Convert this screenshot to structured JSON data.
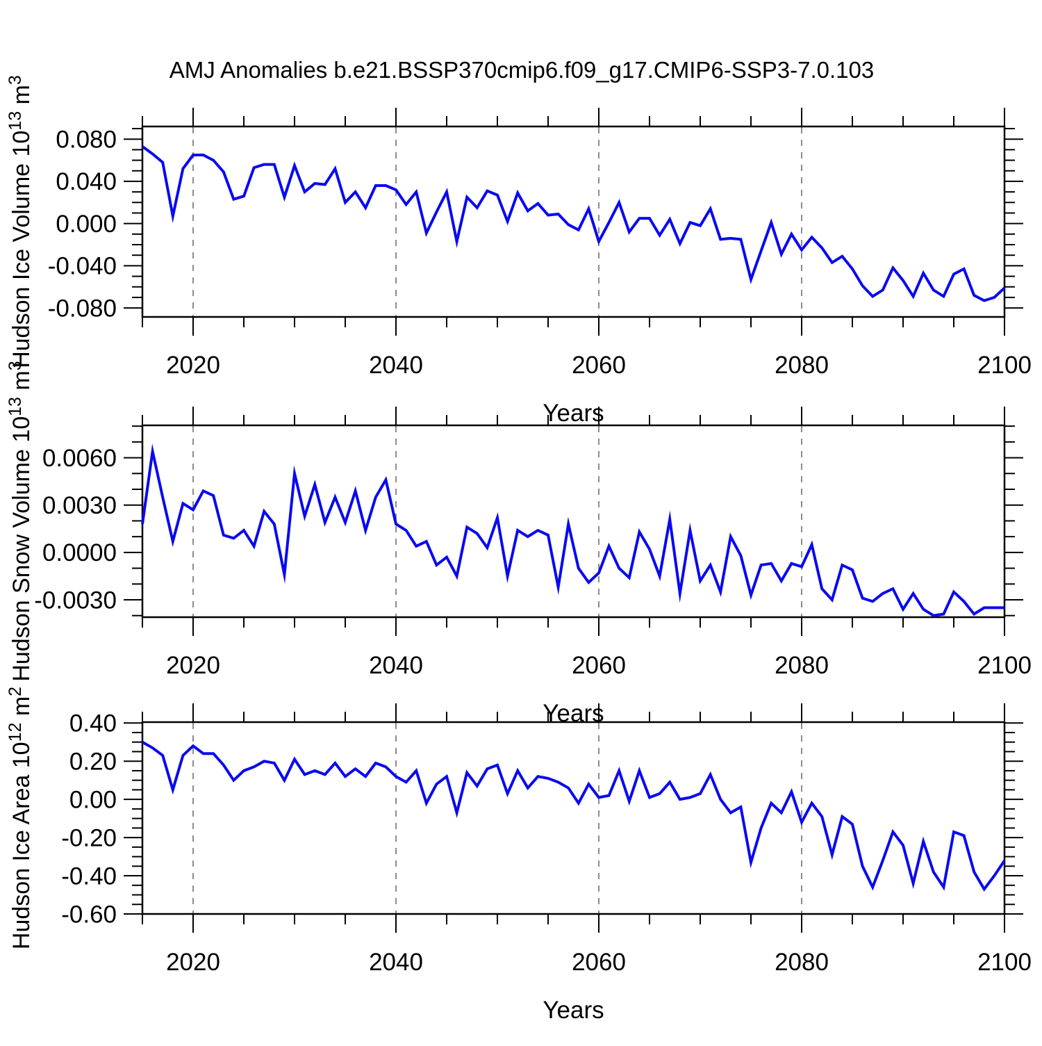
{
  "title": "AMJ Anomalies b.e21.BSSP370cmip6.f09_g17.CMIP6-SSP3-7.0.103",
  "colors": {
    "line": "#0a0af0",
    "grid": "#808080",
    "axis": "#000000",
    "background": "#ffffff"
  },
  "x_axis": {
    "label": "Years",
    "min": 2015,
    "max": 2100,
    "major_ticks": [
      2020,
      2040,
      2060,
      2080,
      2100
    ],
    "minor_step": 5,
    "gridline_years": [
      2020,
      2040,
      2060,
      2080
    ]
  },
  "chart_data": [
    {
      "id": "ice-volume",
      "type": "line",
      "title": "",
      "xlabel": "Years",
      "ylabel": "Hudson Ice Volume 10^13 m^3",
      "ylabel_parts": [
        {
          "t": "Hudson Ice Volume 10"
        },
        {
          "t": "13",
          "sup": true
        },
        {
          "t": " m"
        },
        {
          "t": "3",
          "sup": true
        }
      ],
      "x_start": 2015,
      "x_step": 1,
      "ylim": [
        -0.0885,
        0.092
      ],
      "yticks": {
        "values": [
          0.08,
          0.04,
          0.0,
          -0.04,
          -0.08
        ],
        "labels": [
          "0.080",
          "0.040",
          "0.000",
          "-0.040",
          "-0.080"
        ],
        "minor_step": 0.01
      },
      "values": [
        0.073,
        0.066,
        0.058,
        0.007,
        0.052,
        0.065,
        0.065,
        0.06,
        0.049,
        0.023,
        0.026,
        0.053,
        0.056,
        0.056,
        0.025,
        0.055,
        0.03,
        0.038,
        0.037,
        0.052,
        0.02,
        0.03,
        0.015,
        0.036,
        0.036,
        0.032,
        0.018,
        0.03,
        -0.009,
        0.011,
        0.03,
        -0.017,
        0.025,
        0.015,
        0.031,
        0.027,
        0.002,
        0.029,
        0.012,
        0.019,
        0.008,
        0.009,
        -0.001,
        -0.006,
        0.014,
        -0.017,
        0.001,
        0.02,
        -0.008,
        0.005,
        0.005,
        -0.011,
        0.004,
        -0.019,
        0.001,
        -0.002,
        0.014,
        -0.015,
        -0.014,
        -0.015,
        -0.053,
        -0.026,
        0.001,
        -0.029,
        -0.01,
        -0.025,
        -0.013,
        -0.023,
        -0.037,
        -0.031,
        -0.043,
        -0.059,
        -0.069,
        -0.063,
        -0.042,
        -0.054,
        -0.069,
        -0.047,
        -0.063,
        -0.069,
        -0.048,
        -0.043,
        -0.068,
        -0.073,
        -0.07,
        -0.061
      ]
    },
    {
      "id": "snow-volume",
      "type": "line",
      "title": "",
      "xlabel": "Years",
      "ylabel": "Hudson Snow Volume 10^13 m^3",
      "ylabel_parts": [
        {
          "t": "Hudson Snow Volume 10"
        },
        {
          "t": "13",
          "sup": true
        },
        {
          "t": " m"
        },
        {
          "t": "3",
          "sup": true
        }
      ],
      "x_start": 2015,
      "x_step": 1,
      "ylim": [
        -0.0041,
        0.00805
      ],
      "yticks": {
        "values": [
          0.006,
          0.003,
          0.0,
          -0.003
        ],
        "labels": [
          "0.0060",
          "0.0030",
          "0.0000",
          "-0.0030"
        ],
        "minor_step": 0.001
      },
      "values": [
        0.0018,
        0.0064,
        0.0035,
        0.0007,
        0.0031,
        0.0027,
        0.0039,
        0.0036,
        0.0011,
        0.0009,
        0.0014,
        0.0004,
        0.0026,
        0.0018,
        -0.0014,
        0.005,
        0.0023,
        0.0043,
        0.0019,
        0.0035,
        0.0019,
        0.0039,
        0.0014,
        0.0035,
        0.0046,
        0.0018,
        0.0014,
        0.0004,
        0.0007,
        -0.0008,
        -0.0003,
        -0.0015,
        0.0016,
        0.0012,
        0.0003,
        0.0022,
        -0.0015,
        0.0014,
        0.001,
        0.0014,
        0.0011,
        -0.0022,
        0.0018,
        -0.001,
        -0.0019,
        -0.0013,
        0.0004,
        -0.001,
        -0.0016,
        0.0013,
        0.0002,
        -0.0015,
        0.0021,
        -0.0026,
        0.0014,
        -0.0018,
        -0.0008,
        -0.0025,
        0.001,
        -0.0002,
        -0.0027,
        -0.0008,
        -0.0007,
        -0.0018,
        -0.0007,
        -0.0009,
        0.0005,
        -0.0023,
        -0.003,
        -0.0008,
        -0.0011,
        -0.0029,
        -0.0031,
        -0.0026,
        -0.0023,
        -0.0036,
        -0.0026,
        -0.0036,
        -0.004,
        -0.0039,
        -0.0025,
        -0.0031,
        -0.0039,
        -0.0035,
        -0.0035,
        -0.0035
      ]
    },
    {
      "id": "ice-area",
      "type": "line",
      "title": "",
      "xlabel": "Years",
      "ylabel": "Hudson Ice Area 10^12 m^2",
      "ylabel_parts": [
        {
          "t": "Hudson Ice Area 10"
        },
        {
          "t": "12",
          "sup": true
        },
        {
          "t": " m"
        },
        {
          "t": "2",
          "sup": true
        }
      ],
      "x_start": 2015,
      "x_step": 1,
      "ylim": [
        -0.6,
        0.4045
      ],
      "yticks": {
        "values": [
          0.4,
          0.2,
          0.0,
          -0.2,
          -0.4,
          -0.6
        ],
        "labels": [
          "0.40",
          "0.20",
          "0.00",
          "-0.20",
          "-0.40",
          "-0.60"
        ],
        "minor_step": 0.05
      },
      "values": [
        0.3,
        0.27,
        0.23,
        0.05,
        0.23,
        0.28,
        0.24,
        0.24,
        0.18,
        0.1,
        0.15,
        0.17,
        0.2,
        0.19,
        0.1,
        0.21,
        0.13,
        0.15,
        0.13,
        0.19,
        0.12,
        0.16,
        0.12,
        0.19,
        0.17,
        0.12,
        0.09,
        0.15,
        -0.02,
        0.08,
        0.12,
        -0.07,
        0.14,
        0.07,
        0.16,
        0.18,
        0.03,
        0.15,
        0.06,
        0.12,
        0.11,
        0.09,
        0.06,
        -0.02,
        0.08,
        0.01,
        0.02,
        0.15,
        -0.01,
        0.15,
        0.01,
        0.03,
        0.09,
        0.0,
        0.01,
        0.03,
        0.13,
        0.0,
        -0.07,
        -0.04,
        -0.33,
        -0.15,
        -0.02,
        -0.07,
        0.04,
        -0.12,
        -0.02,
        -0.09,
        -0.29,
        -0.09,
        -0.13,
        -0.35,
        -0.46,
        -0.32,
        -0.17,
        -0.24,
        -0.44,
        -0.22,
        -0.38,
        -0.46,
        -0.17,
        -0.19,
        -0.38,
        -0.47,
        -0.4,
        -0.32
      ]
    }
  ]
}
